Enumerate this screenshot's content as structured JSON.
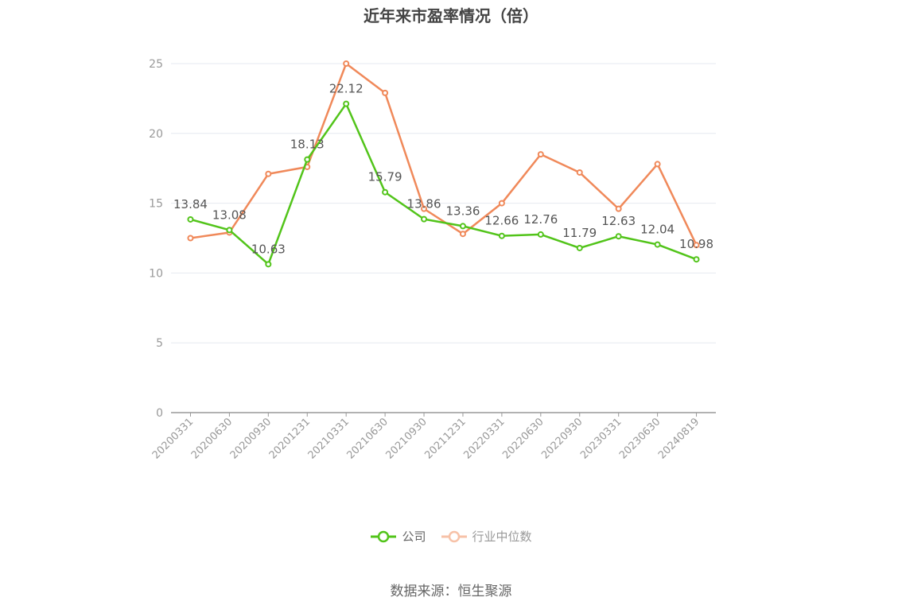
{
  "chart_data": {
    "type": "line",
    "title": "近年来市盈率情况（倍）",
    "categories": [
      "20200331",
      "20200630",
      "20200930",
      "20201231",
      "20210331",
      "20210630",
      "20210930",
      "20211231",
      "20220331",
      "20220630",
      "20220930",
      "20230331",
      "20230630",
      "20240819"
    ],
    "ylim": [
      0,
      25
    ],
    "yticks": [
      0,
      5,
      10,
      15,
      20,
      25
    ],
    "grid": true,
    "legend_position": "bottom",
    "series": [
      {
        "name": "公司",
        "color": "#52c41a",
        "values": [
          13.84,
          13.08,
          10.63,
          18.13,
          22.12,
          15.79,
          13.86,
          13.36,
          12.66,
          12.76,
          11.79,
          12.63,
          12.04,
          10.98
        ],
        "data_labels": [
          "13.84",
          "13.08",
          "10.63",
          "18.13",
          "22.12",
          "15.79",
          "13.86",
          "13.36",
          "12.66",
          "12.76",
          "11.79",
          "12.63",
          "12.04",
          "10.98"
        ]
      },
      {
        "name": "行业中位数",
        "color": "#f0895a",
        "values": [
          12.5,
          12.9,
          17.1,
          17.6,
          25.0,
          22.9,
          14.6,
          12.8,
          15.0,
          18.5,
          17.2,
          14.6,
          17.8,
          12.0
        ]
      }
    ]
  },
  "legend": {
    "company": "公司",
    "industry": "行业中位数"
  },
  "source": "数据来源：恒生聚源"
}
